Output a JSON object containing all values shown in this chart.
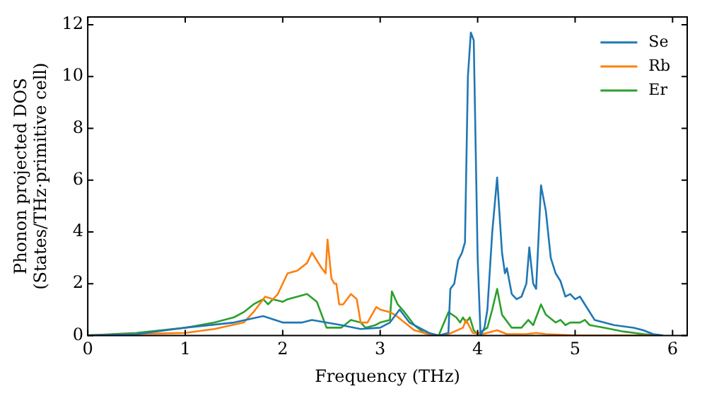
{
  "chart_data": {
    "type": "line",
    "xlabel": "Frequency (THz)",
    "ylabel": "Phonon projected DOS\n(States/THz·primitive cell)",
    "xlim": [
      0,
      6.15
    ],
    "ylim": [
      0,
      12.3
    ],
    "xticks": [
      0,
      1,
      2,
      3,
      4,
      5,
      6
    ],
    "yticks": [
      0,
      2,
      4,
      6,
      8,
      10,
      12
    ],
    "grid": false,
    "legend": "top right",
    "marker": "none",
    "line_style": "solid",
    "series": [
      {
        "name": "Se",
        "color": "#1f77b4",
        "x": [
          0,
          0.5,
          1,
          1.5,
          1.8,
          2.0,
          2.2,
          2.3,
          2.6,
          2.8,
          3.0,
          3.1,
          3.2,
          3.3,
          3.5,
          3.6,
          3.7,
          3.72,
          3.76,
          3.8,
          3.84,
          3.87,
          3.9,
          3.93,
          3.96,
          4.0,
          4.03,
          4.07,
          4.1,
          4.15,
          4.2,
          4.25,
          4.28,
          4.3,
          4.35,
          4.4,
          4.45,
          4.5,
          4.53,
          4.57,
          4.6,
          4.65,
          4.7,
          4.75,
          4.8,
          4.85,
          4.9,
          4.95,
          5.0,
          5.05,
          5.1,
          5.2,
          5.4,
          5.6,
          5.7,
          5.8,
          5.9
        ],
        "values": [
          0,
          0.05,
          0.3,
          0.5,
          0.75,
          0.5,
          0.5,
          0.6,
          0.4,
          0.25,
          0.3,
          0.5,
          1.0,
          0.5,
          0.1,
          0,
          0.1,
          1.8,
          2.0,
          2.9,
          3.2,
          3.6,
          10,
          11.7,
          11.4,
          3,
          0,
          0.3,
          1,
          4,
          6.1,
          3.2,
          2.4,
          2.6,
          1.6,
          1.4,
          1.5,
          2,
          3.4,
          2,
          1.8,
          5.8,
          4.8,
          3.0,
          2.4,
          2.1,
          1.5,
          1.6,
          1.4,
          1.5,
          1.2,
          0.6,
          0.4,
          0.3,
          0.2,
          0.05,
          0
        ]
      },
      {
        "name": "Rb",
        "color": "#ff7f0e",
        "x": [
          0,
          1,
          1.3,
          1.6,
          1.7,
          1.82,
          1.9,
          1.95,
          2.05,
          2.15,
          2.25,
          2.3,
          2.4,
          2.44,
          2.46,
          2.5,
          2.53,
          2.55,
          2.58,
          2.62,
          2.7,
          2.76,
          2.8,
          2.87,
          2.96,
          3.0,
          3.1,
          3.15,
          3.25,
          3.35,
          3.5,
          3.6,
          3.7,
          3.85,
          3.88,
          3.95,
          4.05,
          4.2,
          4.3,
          4.5,
          4.6,
          4.7,
          5.0,
          5.9
        ],
        "values": [
          0,
          0.1,
          0.25,
          0.5,
          0.9,
          1.5,
          1.4,
          1.6,
          2.4,
          2.5,
          2.8,
          3.2,
          2.6,
          2.4,
          3.7,
          2.2,
          2.0,
          2.0,
          1.2,
          1.2,
          1.6,
          1.4,
          0.5,
          0.5,
          1.1,
          1.0,
          0.9,
          0.8,
          0.5,
          0.2,
          0.05,
          0,
          0.05,
          0.3,
          0.6,
          0.1,
          0.05,
          0.2,
          0.05,
          0.05,
          0.1,
          0.05,
          0,
          0
        ]
      },
      {
        "name": "Er",
        "color": "#2ca02c",
        "x": [
          0,
          0.5,
          1,
          1.3,
          1.5,
          1.6,
          1.7,
          1.8,
          1.85,
          1.9,
          2.0,
          2.05,
          2.25,
          2.35,
          2.45,
          2.6,
          2.7,
          2.8,
          2.85,
          2.95,
          3.0,
          3.1,
          3.12,
          3.18,
          3.25,
          3.35,
          3.45,
          3.55,
          3.6,
          3.7,
          3.78,
          3.82,
          3.85,
          3.88,
          3.92,
          3.96,
          4.0,
          4.1,
          4.15,
          4.2,
          4.25,
          4.35,
          4.45,
          4.52,
          4.57,
          4.62,
          4.65,
          4.7,
          4.8,
          4.85,
          4.9,
          4.95,
          5.05,
          5.1,
          5.15,
          5.3,
          5.5,
          5.7,
          5.85
        ],
        "values": [
          0,
          0.1,
          0.3,
          0.5,
          0.7,
          0.9,
          1.2,
          1.4,
          1.2,
          1.4,
          1.3,
          1.4,
          1.6,
          1.3,
          0.3,
          0.3,
          0.6,
          0.5,
          0.3,
          0.4,
          0.5,
          0.6,
          1.7,
          1.2,
          0.9,
          0.4,
          0.1,
          0,
          0,
          0.9,
          0.7,
          0.5,
          0.7,
          0.5,
          0.7,
          0.2,
          0.05,
          0.3,
          1.0,
          1.8,
          0.8,
          0.3,
          0.3,
          0.6,
          0.4,
          0.9,
          1.2,
          0.8,
          0.5,
          0.6,
          0.4,
          0.5,
          0.5,
          0.6,
          0.4,
          0.3,
          0.15,
          0.05,
          0
        ]
      }
    ]
  }
}
